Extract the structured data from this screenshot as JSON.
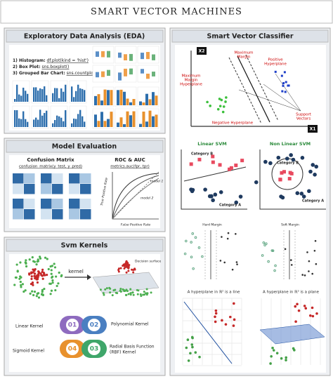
{
  "header": {
    "title": "SMART VECTOR MACHINES"
  },
  "eda": {
    "title": "Exploratory Data Analysis (EDA)",
    "items": [
      {
        "label": "1) Histogram:",
        "code": "df.plot(kind = 'hist')"
      },
      {
        "label": "2) Box Plot:",
        "code": "sns.boxplot()"
      },
      {
        "label": "3) Grouped Bar Chart:",
        "code": "sns.countplot()"
      }
    ]
  },
  "model_evaluation": {
    "title": "Model Evaluation",
    "confusion_matrix": {
      "title": "Confusion Matrix",
      "code": "confusion_matrix(y_test, y_pred)"
    },
    "roc": {
      "title": "ROC & AUC",
      "code": "metrics.auc(fpr, tpr)",
      "y_label": "True Positive Rate",
      "x_label": "False Positive Rate",
      "curves": [
        "model 1",
        "model 2"
      ]
    }
  },
  "svm_kernels": {
    "title": "Svm Kernels",
    "arrow_label": "kernel",
    "surface_label": "Decision surface",
    "kernels": [
      {
        "number": "01",
        "label": [
          "Linear Kernel"
        ]
      },
      {
        "number": "02",
        "label": [
          "Polynomial Kernel"
        ]
      },
      {
        "number": "03",
        "label": [
          "Radial Basis Function",
          "(RBF) Kernel"
        ]
      },
      {
        "number": "04",
        "label": [
          "Sigmoid Kernel"
        ]
      }
    ]
  },
  "classifier": {
    "title": "Smart Vector Classifier",
    "x_axis": "X1",
    "y_axis": "X2",
    "annotations": {
      "maximum_margin": [
        "Maximum",
        "Margin"
      ],
      "positive_hyperplane": [
        "Positive",
        "Hyperplane"
      ],
      "max_margin_hyperplane": [
        "Maximum",
        "Margin",
        "Hyperplane"
      ],
      "support_vectors": [
        "Support",
        "Vectors"
      ],
      "negative_hyperplane": [
        "Negative Hyperplane"
      ]
    },
    "linear": {
      "title": "Linear SVM",
      "class_b": "Category B",
      "class_a": "Category A"
    },
    "nonlinear": {
      "title": "Non Linear SVM",
      "class_b": "Category B",
      "class_a": "Category A"
    },
    "hard_margin": "Hard Margin",
    "soft_margin": "Soft Margin",
    "line_caption": "A hyperplane in ℝ² is a line",
    "plane_caption": "A hyperplane in ℝ³ is a plane"
  }
}
